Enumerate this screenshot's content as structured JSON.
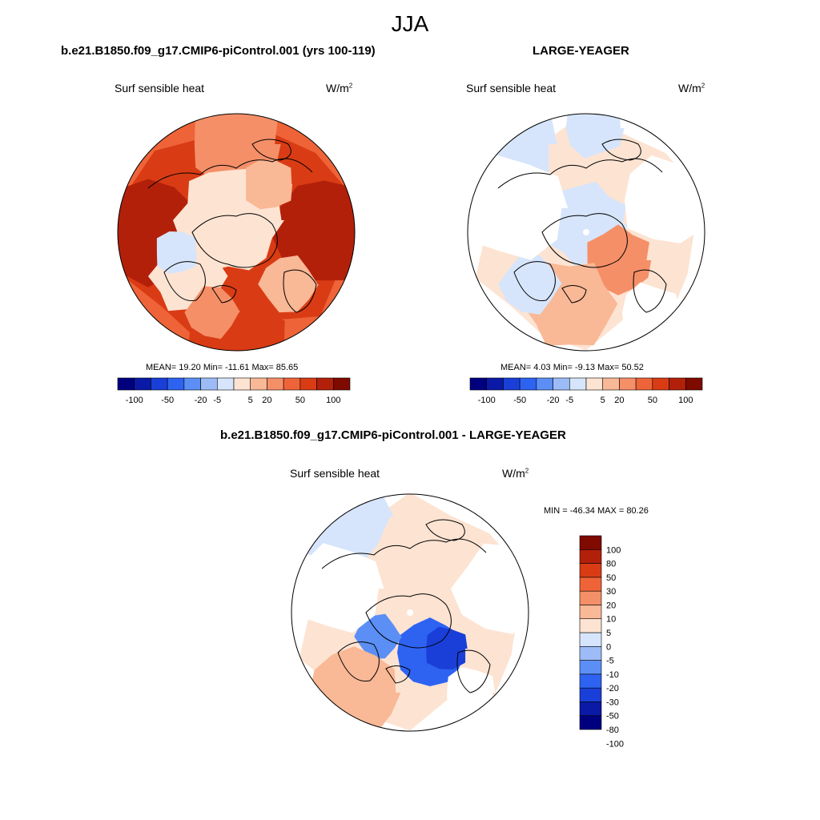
{
  "figure_title": "JJA",
  "colors": {
    "scale": [
      "#00007f",
      "#0a1aa6",
      "#1a3fd9",
      "#2e63f2",
      "#5b8ff5",
      "#9dbcf7",
      "#d6e5fb",
      "#fde3d2",
      "#f9b896",
      "#f58f68",
      "#ee6438",
      "#d93c14",
      "#b3200a",
      "#7f0a00"
    ],
    "land_outline": "#000000",
    "missing": "#ffffff"
  },
  "panels": {
    "left": {
      "title": "b.e21.B1850.f09_g17.CMIP6-piControl.001 (yrs 100-119)",
      "left_label": "Surf sensible heat",
      "right_label": "W/m",
      "units_sup": "2",
      "stats": "MEAN=  19.20  Min= -11.61  Max=  85.65"
    },
    "right": {
      "title": "LARGE-YEAGER",
      "left_label": "Surf sensible heat",
      "right_label": "W/m",
      "units_sup": "2",
      "stats": "MEAN=   4.03  Min=  -9.13  Max=  50.52"
    },
    "diff": {
      "title": "b.e21.B1850.f09_g17.CMIP6-piControl.001 - LARGE-YEAGER",
      "left_label": "Surf sensible heat",
      "right_label": "W/m",
      "units_sup": "2",
      "stats": "MIN = -46.34 MAX =  80.26"
    }
  },
  "chart_data": [
    {
      "type": "heatmap",
      "title": "b.e21.B1850.f09_g17.CMIP6-piControl.001 (yrs 100-119)",
      "variable": "Surf sensible heat",
      "units": "W/m2",
      "projection": "north polar stereographic",
      "mean": 19.2,
      "min": -11.61,
      "max": 85.65,
      "colorbar_ticks": [
        "-100",
        "-50",
        "-20",
        "-5",
        "5",
        "20",
        "50",
        "100"
      ],
      "levels": [
        -100,
        -80,
        -50,
        -30,
        -20,
        -10,
        -5,
        0,
        5,
        10,
        20,
        30,
        50,
        80,
        100
      ]
    },
    {
      "type": "heatmap",
      "title": "LARGE-YEAGER",
      "variable": "Surf sensible heat",
      "units": "W/m2",
      "projection": "north polar stereographic",
      "mean": 4.03,
      "min": -9.13,
      "max": 50.52,
      "colorbar_ticks": [
        "-100",
        "-50",
        "-20",
        "-5",
        "5",
        "20",
        "50",
        "100"
      ],
      "levels": [
        -100,
        -80,
        -50,
        -30,
        -20,
        -10,
        -5,
        0,
        5,
        10,
        20,
        30,
        50,
        80,
        100
      ]
    },
    {
      "type": "heatmap",
      "title": "b.e21.B1850.f09_g17.CMIP6-piControl.001 - LARGE-YEAGER",
      "variable": "Surf sensible heat",
      "units": "W/m2",
      "projection": "north polar stereographic",
      "min": -46.34,
      "max": 80.26,
      "colorbar_ticks": [
        "100",
        "80",
        "50",
        "30",
        "20",
        "10",
        "5",
        "0",
        "-5",
        "-10",
        "-20",
        "-30",
        "-50",
        "-80",
        "-100"
      ],
      "levels": [
        -100,
        -80,
        -50,
        -30,
        -20,
        -10,
        -5,
        0,
        5,
        10,
        20,
        30,
        50,
        80,
        100
      ]
    }
  ]
}
